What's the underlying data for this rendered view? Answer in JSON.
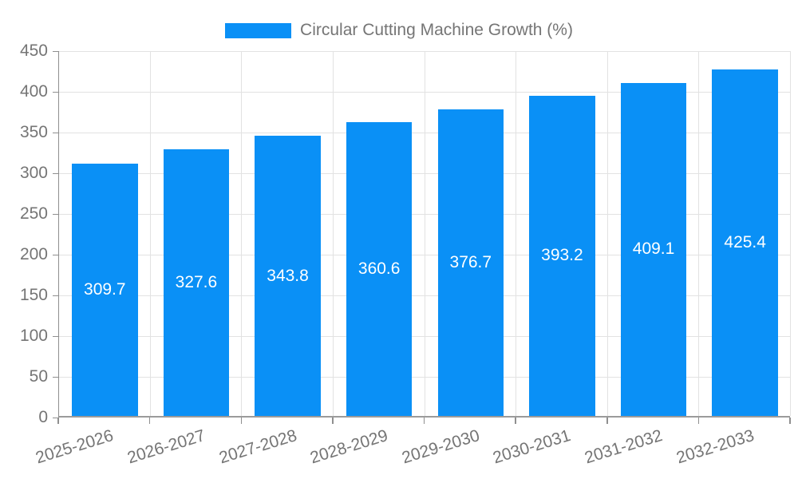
{
  "chart_data": {
    "type": "bar",
    "title": "Circular Cutting Machine Growth (%)",
    "categories": [
      "2025-2026",
      "2026-2027",
      "2027-2028",
      "2028-2029",
      "2029-2030",
      "2030-2031",
      "2031-2032",
      "2032-2033"
    ],
    "values": [
      309.7,
      327.6,
      343.8,
      360.6,
      376.7,
      393.2,
      409.1,
      425.4
    ],
    "value_decimals": 1,
    "xlabel": "",
    "ylabel": "",
    "ylim": [
      0,
      450
    ],
    "ytick_step": 50,
    "yticks": [
      0,
      50,
      100,
      150,
      200,
      250,
      300,
      350,
      400,
      450
    ],
    "grid": true,
    "legend_position": "top",
    "bar_label_position": "center-inside"
  },
  "legend": {
    "label": "Circular Cutting Machine Growth (%)"
  },
  "colors": {
    "bar": "#0a90f6",
    "bar_label": "#ffffff",
    "grid": "#e2e2e2",
    "axis": "#8f8f8f",
    "tick_label": "#757575",
    "legend_text": "#757575",
    "background": "#ffffff"
  }
}
